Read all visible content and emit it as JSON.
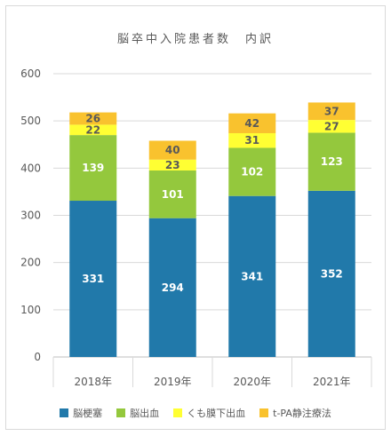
{
  "chart_data": {
    "type": "bar",
    "stacked": true,
    "title": "脳卒中入院患者数　内訳",
    "categories": [
      "2018年",
      "2019年",
      "2020年",
      "2021年"
    ],
    "series": [
      {
        "name": "脳梗塞",
        "color": "#2179AA",
        "values": [
          331,
          294,
          341,
          352
        ],
        "label_color": "#ffffff"
      },
      {
        "name": "脳出血",
        "color": "#94C83D",
        "values": [
          139,
          101,
          102,
          123
        ],
        "label_color": "#ffffff"
      },
      {
        "name": "くも膜下出血",
        "color": "#FFFF33",
        "values": [
          22,
          23,
          31,
          27
        ],
        "label_color": "#595959"
      },
      {
        "name": "t-PA静注療法",
        "color": "#F9C22E",
        "values": [
          26,
          40,
          42,
          37
        ],
        "label_color": "#595959"
      }
    ],
    "ylim": [
      0,
      600
    ],
    "yticks": [
      "0",
      "100",
      "200",
      "300",
      "400",
      "500",
      "600"
    ],
    "grid": true,
    "legend": "bottom"
  }
}
